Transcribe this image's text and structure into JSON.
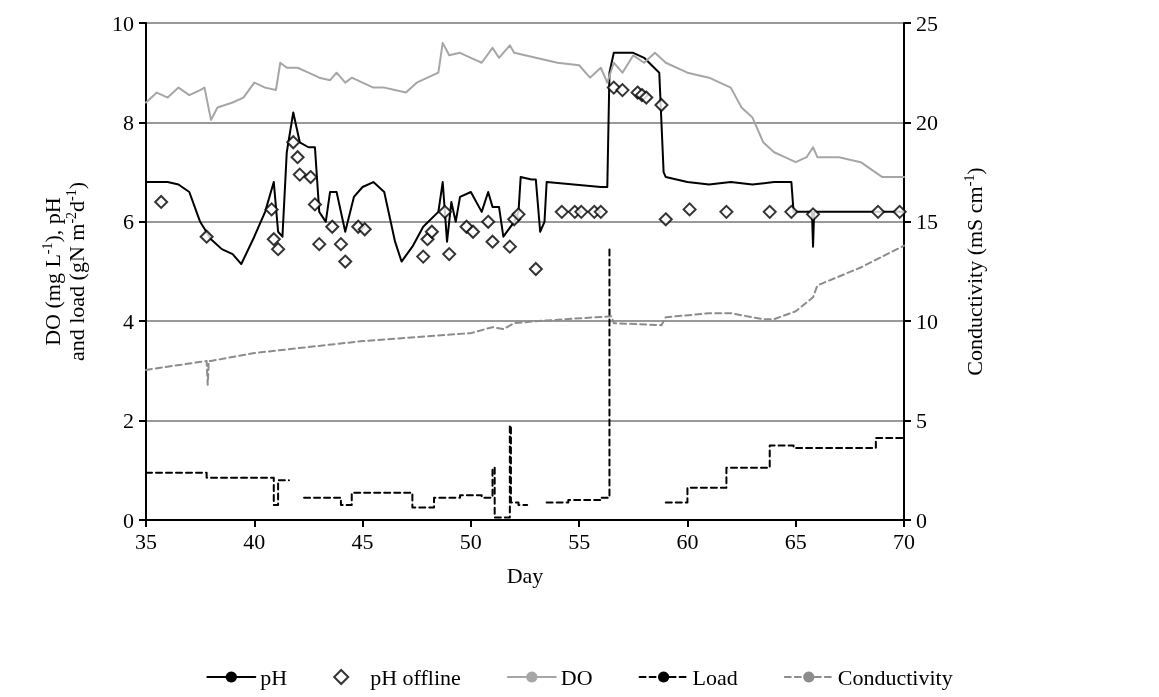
{
  "chart_data": {
    "type": "line",
    "xlabel": "Day",
    "ylabel": "DO (mg L$^{-1}$), pH\nand load (gN m$^{-2}$d$^{-1}$)",
    "y2label": "Conductivity (mS cm$^{-1}$)",
    "xlim": [
      35,
      70
    ],
    "xticks": [
      35,
      40,
      45,
      50,
      55,
      60,
      65,
      70
    ],
    "ylim": [
      0,
      10
    ],
    "yticks": [
      0,
      2,
      4,
      6,
      8,
      10
    ],
    "y2lim": [
      0,
      25
    ],
    "y2ticks": [
      0,
      5,
      10,
      15,
      20,
      25
    ],
    "grid": "y",
    "legend": "bottom",
    "series": [
      {
        "name": "pH",
        "color": "#000000",
        "marker": "none",
        "line_style": "solid",
        "x": [
          35,
          36,
          36.5,
          37,
          37.5,
          38,
          38.5,
          39,
          39.4,
          40,
          40.5,
          40.9,
          41.1,
          41.3,
          41.5,
          41.8,
          42.1,
          42.5,
          42.8,
          43,
          43.3,
          43.5,
          43.8,
          44.2,
          44.6,
          45,
          45.5,
          46,
          46.5,
          46.8,
          47.3,
          47.8,
          48.5,
          48.7,
          48.9,
          49.1,
          49.3,
          49.5,
          50,
          50.5,
          50.8,
          51,
          51.3,
          51.5,
          52,
          52.2,
          52.3,
          52.8,
          53,
          53.2,
          53.4,
          53.5,
          56,
          56.3,
          56.4,
          56.6,
          57.5,
          58,
          58.7,
          58.9,
          59,
          60,
          61,
          62,
          63,
          64,
          64.8,
          64.9,
          65.75,
          65.8,
          65.85,
          70
        ],
        "values": [
          6.8,
          6.8,
          6.75,
          6.6,
          6.0,
          5.65,
          5.45,
          5.35,
          5.15,
          5.7,
          6.2,
          6.8,
          5.8,
          5.7,
          7.4,
          8.2,
          7.6,
          7.5,
          7.5,
          6.2,
          6.0,
          6.6,
          6.6,
          5.8,
          6.5,
          6.7,
          6.8,
          6.6,
          5.6,
          5.2,
          5.5,
          5.9,
          6.2,
          6.8,
          5.6,
          6.4,
          6.0,
          6.5,
          6.6,
          6.2,
          6.6,
          6.3,
          6.3,
          5.7,
          6.0,
          6.2,
          6.9,
          6.85,
          6.85,
          5.8,
          6.0,
          6.8,
          6.7,
          6.7,
          9.0,
          9.4,
          9.4,
          9.3,
          9.0,
          7.0,
          6.9,
          6.8,
          6.75,
          6.8,
          6.75,
          6.8,
          6.8,
          6.2,
          6.2,
          5.5,
          6.2,
          6.2
        ]
      },
      {
        "name": "pH offline",
        "type": "scatter",
        "color": "#000000",
        "marker": "diamond",
        "x": [
          35.7,
          37.8,
          40.8,
          40.9,
          41.1,
          41.8,
          42,
          42.1,
          42.6,
          42.8,
          43,
          43.6,
          44,
          44.2,
          44.8,
          45.1,
          47.8,
          48,
          48.2,
          48.8,
          49,
          49.8,
          50.1,
          50.8,
          51,
          51.8,
          52,
          52.2,
          53,
          54.2,
          54.8,
          55.1,
          55.7,
          56,
          56.6,
          57,
          57.7,
          57.9,
          58.1,
          58.8,
          59,
          60.1,
          61.8,
          63.8,
          64.8,
          65.8,
          68.8,
          69.8
        ],
        "values": [
          6.4,
          5.7,
          6.25,
          5.65,
          5.45,
          7.6,
          7.3,
          6.95,
          6.9,
          6.35,
          5.55,
          5.9,
          5.55,
          5.2,
          5.9,
          5.85,
          5.3,
          5.65,
          5.8,
          6.2,
          5.35,
          5.9,
          5.8,
          6.0,
          5.6,
          5.5,
          6.05,
          6.15,
          5.05,
          6.2,
          6.2,
          6.2,
          6.2,
          6.2,
          8.7,
          8.65,
          8.6,
          8.55,
          8.5,
          8.35,
          6.05,
          6.25,
          6.2,
          6.2,
          6.2,
          6.15,
          6.2,
          6.2
        ]
      },
      {
        "name": "DO",
        "color": "#a6a6a6",
        "marker": "none",
        "line_style": "solid",
        "x": [
          35,
          35.5,
          36,
          36.5,
          37,
          37.5,
          37.7,
          38,
          38.3,
          39,
          39.5,
          40,
          40.5,
          41,
          41.2,
          41.5,
          42,
          42.5,
          43,
          43.5,
          43.8,
          44.2,
          44.5,
          45,
          45.5,
          46,
          46.5,
          47,
          47.5,
          48,
          48.5,
          48.7,
          49,
          49.5,
          50,
          50.5,
          51,
          51.3,
          51.8,
          52,
          52.5,
          53,
          54,
          55,
          55.5,
          56,
          56.3,
          56.6,
          57,
          57.5,
          58,
          58.5,
          59,
          60,
          61,
          62,
          62.5,
          63,
          63.5,
          64,
          64.5,
          65,
          65.5,
          65.8,
          66,
          67,
          68,
          69,
          70
        ],
        "values": [
          8.4,
          8.6,
          8.5,
          8.7,
          8.55,
          8.65,
          8.7,
          8.05,
          8.3,
          8.4,
          8.5,
          8.8,
          8.7,
          8.65,
          9.2,
          9.1,
          9.1,
          9.0,
          8.9,
          8.85,
          9.0,
          8.8,
          8.9,
          8.8,
          8.7,
          8.7,
          8.65,
          8.6,
          8.8,
          8.9,
          9.0,
          9.6,
          9.35,
          9.4,
          9.3,
          9.2,
          9.5,
          9.3,
          9.55,
          9.4,
          9.35,
          9.3,
          9.2,
          9.15,
          8.9,
          9.1,
          8.8,
          9.2,
          9.0,
          9.35,
          9.2,
          9.4,
          9.2,
          9.0,
          8.9,
          8.7,
          8.3,
          8.1,
          7.6,
          7.4,
          7.3,
          7.2,
          7.3,
          7.5,
          7.3,
          7.3,
          7.2,
          6.9,
          6.9
        ]
      },
      {
        "name": "Load",
        "type": "step",
        "color": "#000000",
        "marker": "none",
        "line_style": "dashed",
        "x": [
          35,
          37.8,
          40.9,
          41.1,
          41.5,
          41.6,
          42.3,
          44,
          44.5,
          47.3,
          48.3,
          49.5,
          50.5,
          51,
          51.1,
          51.8,
          51.85,
          52.2,
          52.5,
          52.6,
          53.5,
          54.5,
          56,
          56.4,
          56.5,
          56.55,
          59,
          60,
          61.8,
          63.8,
          64.9,
          68.7,
          70
        ],
        "values": [
          0.95,
          0.85,
          0.3,
          0.8,
          0.8,
          null,
          0.45,
          0.3,
          0.55,
          0.25,
          0.45,
          0.5,
          0.45,
          1.05,
          0.05,
          1.9,
          0.35,
          0.3,
          0.3,
          null,
          0.35,
          0.4,
          0.45,
          5.45,
          5.45,
          null,
          0.35,
          0.65,
          1.05,
          1.5,
          1.45,
          1.65,
          1.65
        ]
      },
      {
        "name": "Conductivity",
        "axis": "y2",
        "color": "#8c8c8c",
        "marker": "none",
        "line_style": "dashed",
        "x": [
          35,
          37.8,
          37.85,
          37.9,
          38,
          40,
          45,
          50,
          51,
          51.5,
          52,
          53,
          56.5,
          56.6,
          58.8,
          59,
          61,
          62,
          63.5,
          64,
          65,
          65.8,
          66,
          68,
          70
        ],
        "values": [
          7.55,
          8.0,
          6.8,
          8.0,
          8.0,
          8.4,
          9.0,
          9.4,
          9.7,
          9.6,
          9.9,
          10.0,
          10.25,
          9.9,
          9.8,
          10.2,
          10.4,
          10.4,
          10.1,
          10.1,
          10.5,
          11.2,
          11.8,
          12.7,
          13.8
        ]
      }
    ]
  }
}
